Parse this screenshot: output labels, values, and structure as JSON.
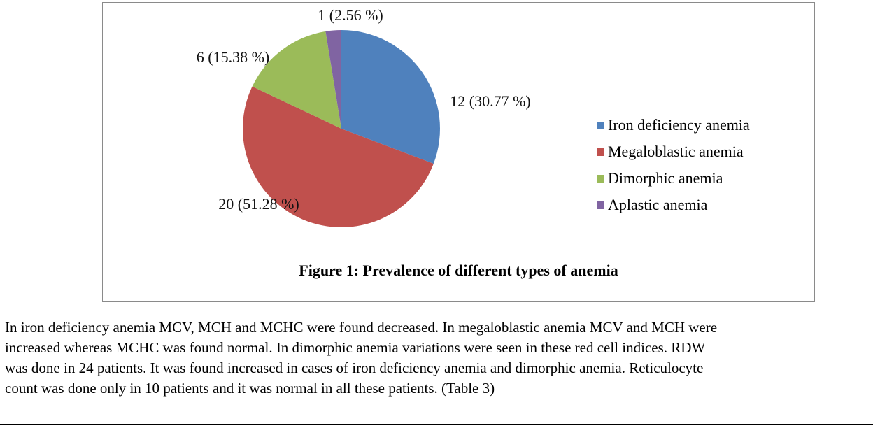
{
  "chart_data": {
    "type": "pie",
    "title": "Figure 1: Prevalence of different types of anemia",
    "categories": [
      "Iron deficiency anemia",
      "Megaloblastic anemia",
      "Dimorphic anemia",
      "Aplastic anemia"
    ],
    "values": [
      12,
      20,
      6,
      1
    ],
    "percentages": [
      30.77,
      51.28,
      15.38,
      2.56
    ],
    "data_labels": [
      "12 (30.77 %)",
      "20 (51.28 %)",
      "6 (15.38 %)",
      "1 (2.56 %)"
    ],
    "colors": [
      "#4f81bd",
      "#c0504d",
      "#9bbb59",
      "#8064a2"
    ],
    "legend_position": "right"
  },
  "paragraph": {
    "lines": [
      "In iron deficiency anemia MCV, MCH and MCHC were found decreased. In megaloblastic anemia MCV and MCH were",
      "increased whereas MCHC was found normal. In dimorphic anemia variations were seen in these red cell indices. RDW",
      "was done in 24 patients. It was found increased in cases of iron deficiency anemia and dimorphic anemia. Reticulocyte",
      "count was done only in 10 patients and it was normal in all these patients. (Table 3)"
    ]
  }
}
